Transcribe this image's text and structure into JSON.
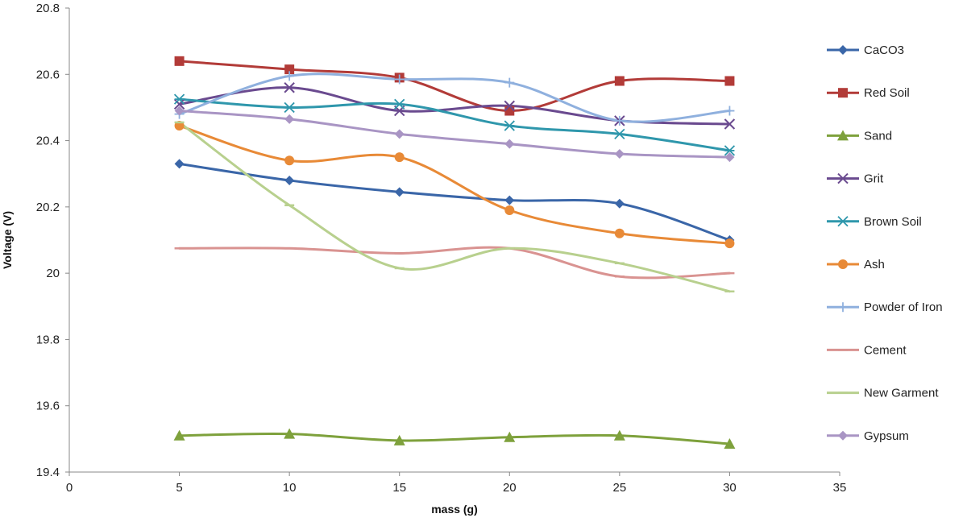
{
  "chart_data": {
    "type": "line",
    "title": "",
    "xlabel": "mass (g)",
    "ylabel": "Voltage (V)",
    "xlim": [
      0,
      35
    ],
    "ylim": [
      19.4,
      20.8
    ],
    "xticks": [
      "0",
      "5",
      "10",
      "15",
      "20",
      "25",
      "30",
      "35"
    ],
    "yticks": [
      "19.4",
      "19.6",
      "19.8",
      "20",
      "20.2",
      "20.4",
      "20.6",
      "20.8"
    ],
    "grid": false,
    "legend_position": "right",
    "x": [
      5,
      10,
      15,
      20,
      25,
      30
    ],
    "series": [
      {
        "name": "CaCO3",
        "color": "#3a66a8",
        "marker": "diamond",
        "values": [
          20.33,
          20.28,
          20.245,
          20.22,
          20.21,
          20.1
        ]
      },
      {
        "name": "Red Soil",
        "color": "#b23b38",
        "marker": "square",
        "values": [
          20.64,
          20.615,
          20.59,
          20.49,
          20.58,
          20.58
        ]
      },
      {
        "name": "Sand",
        "color": "#7ea13c",
        "marker": "triangle",
        "values": [
          19.51,
          19.515,
          19.495,
          19.505,
          19.51,
          19.485
        ]
      },
      {
        "name": "Grit",
        "color": "#6a4a8f",
        "marker": "x",
        "values": [
          20.51,
          20.56,
          20.49,
          20.505,
          20.46,
          20.45
        ]
      },
      {
        "name": "Brown Soil",
        "color": "#2f97ac",
        "marker": "star",
        "values": [
          20.525,
          20.5,
          20.51,
          20.445,
          20.42,
          20.37
        ]
      },
      {
        "name": "Ash",
        "color": "#e88a37",
        "marker": "circle",
        "values": [
          20.445,
          20.34,
          20.35,
          20.19,
          20.12,
          20.09
        ]
      },
      {
        "name": "Powder of Iron",
        "color": "#8fb0de",
        "marker": "plus",
        "values": [
          20.48,
          20.595,
          20.585,
          20.575,
          20.46,
          20.49
        ]
      },
      {
        "name": "Cement",
        "color": "#d99391",
        "marker": "dash",
        "values": [
          20.075,
          20.075,
          20.06,
          20.075,
          19.99,
          20.0
        ]
      },
      {
        "name": "New Garment",
        "color": "#b8d08e",
        "marker": "dash",
        "values": [
          20.455,
          20.205,
          20.015,
          20.075,
          20.03,
          19.945
        ]
      },
      {
        "name": "Gypsum",
        "color": "#a995c4",
        "marker": "diamond",
        "values": [
          20.49,
          20.465,
          20.42,
          20.39,
          20.36,
          20.35
        ]
      }
    ]
  }
}
